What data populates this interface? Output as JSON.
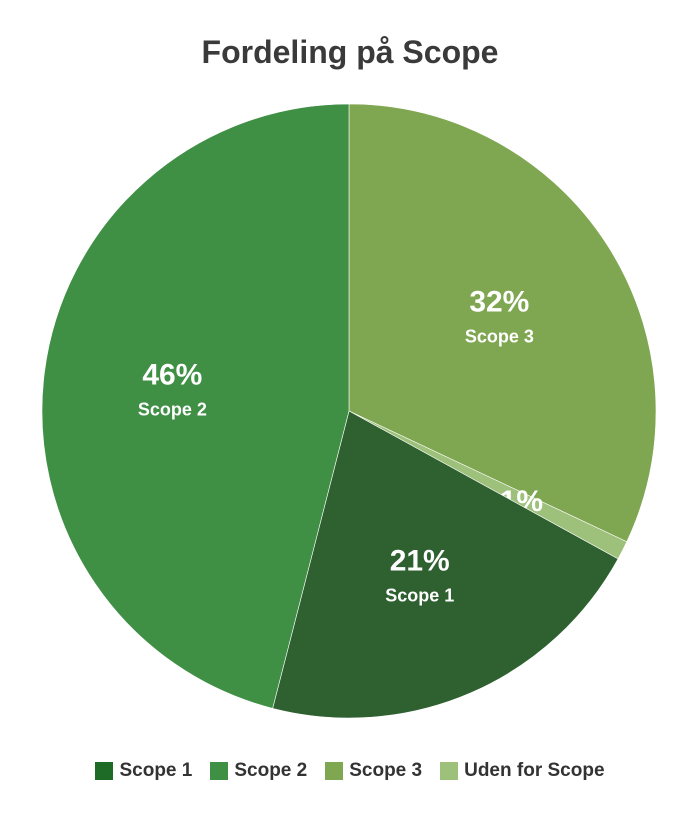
{
  "chart_data": {
    "type": "pie",
    "title": "Fordeling på Scope",
    "slices": [
      {
        "name": "Scope 3",
        "value": 32,
        "label_pct": "32%",
        "label_name": "Scope 3",
        "color": "#7fa650"
      },
      {
        "name": "Uden for Scope",
        "value": 1,
        "label_pct": "1%",
        "label_name": "",
        "color": "#9dc07a"
      },
      {
        "name": "Scope 1",
        "value": 21,
        "label_pct": "21%",
        "label_name": "Scope 1",
        "color": "#2e6030"
      },
      {
        "name": "Scope 2",
        "value": 46,
        "label_pct": "46%",
        "label_name": "Scope 2",
        "color": "#3f8f45"
      }
    ],
    "legend": {
      "placement": "bottom",
      "items": [
        {
          "name": "Scope 1",
          "color": "#1e6b27"
        },
        {
          "name": "Scope 2",
          "color": "#3f8f45"
        },
        {
          "name": "Scope 3",
          "color": "#7fa650"
        },
        {
          "name": "Uden for Scope",
          "color": "#9dc07a"
        }
      ]
    }
  }
}
